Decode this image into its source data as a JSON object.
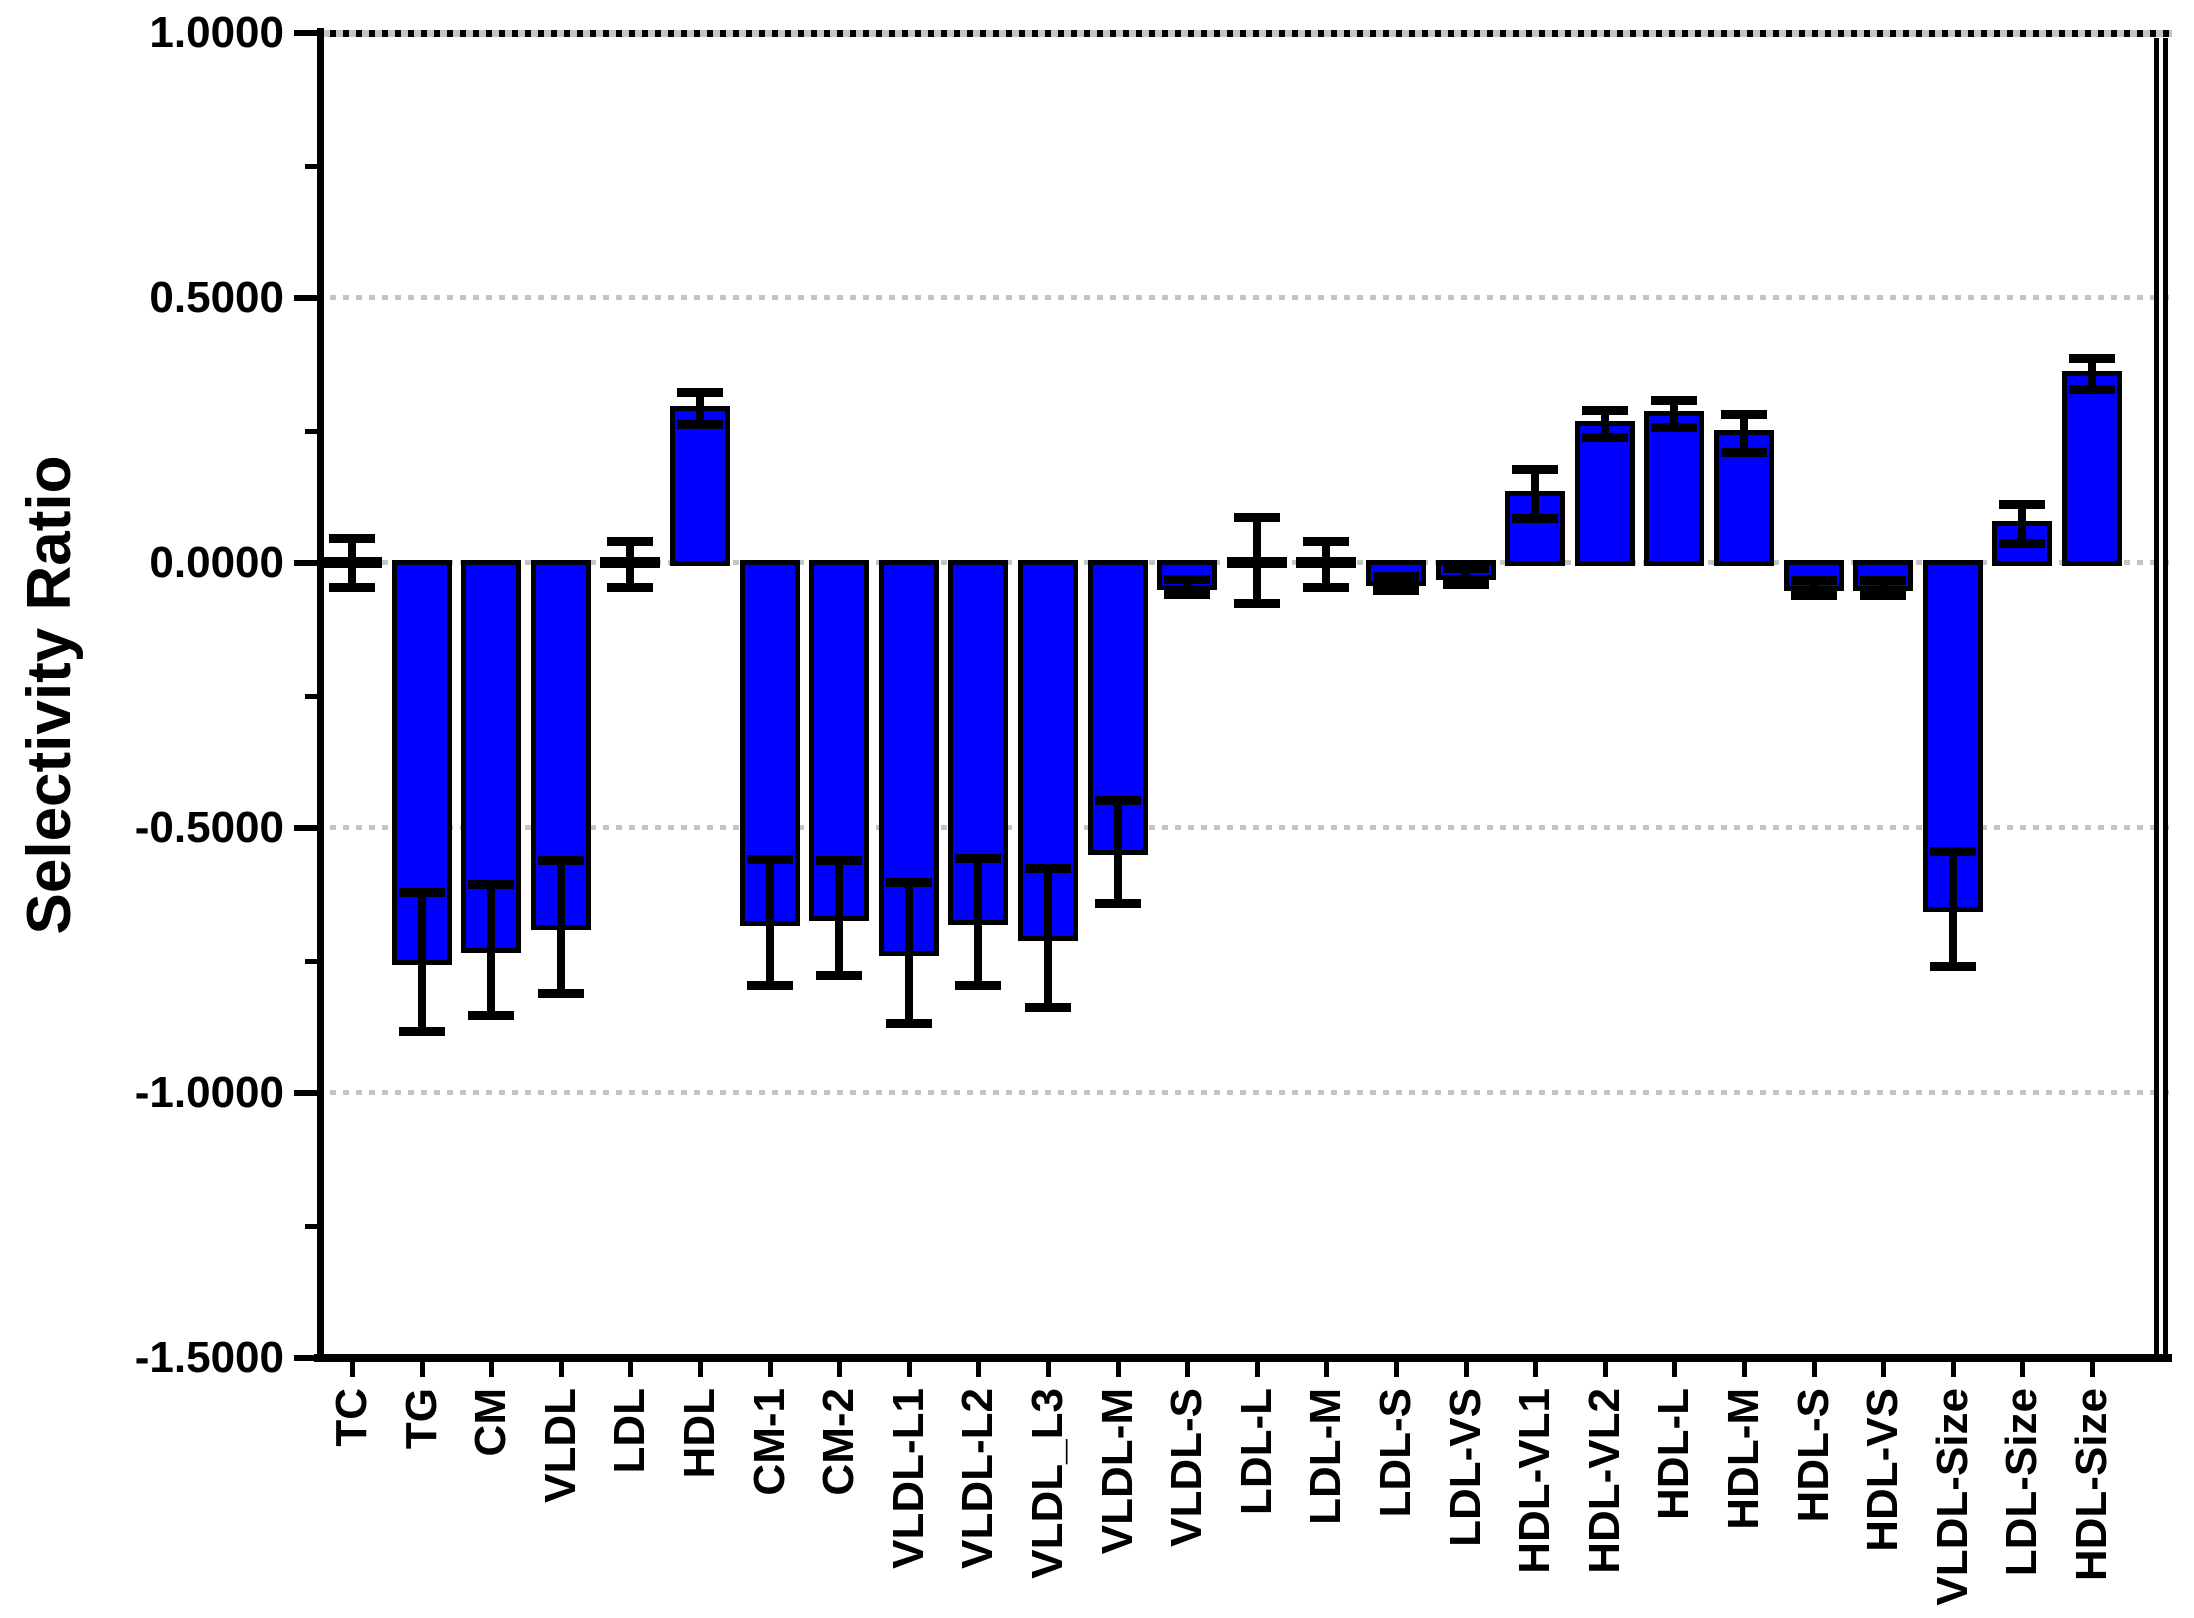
{
  "figure": {
    "background": "#ffffff"
  },
  "y_axis": {
    "title": "Selectivity Ratio",
    "range": [
      -1.5,
      1.0
    ],
    "major_ticks": [
      1.0,
      0.5,
      0.0,
      -0.5,
      -1.0,
      -1.5
    ],
    "tick_labels": [
      "1.0000",
      "0.5000",
      "0.0000",
      "-0.5000",
      "-1.0000",
      "-1.5000"
    ],
    "minor_ticks": [
      0.75,
      0.25,
      -0.25,
      -0.75,
      -1.25
    ],
    "gridline_values": [
      1.0,
      0.5,
      0.0,
      -0.5,
      -1.0
    ]
  },
  "chart_data": {
    "type": "bar",
    "title": "",
    "xlabel": "",
    "ylabel": "Selectivity Ratio",
    "ylim": [
      -1.5,
      1.0
    ],
    "grid": "horizontal dotted at 0.5 intervals",
    "legend_position": "none",
    "categories": [
      "TC",
      "TG",
      "CM",
      "VLDL",
      "LDL",
      "HDL",
      "CM-1",
      "CM-2",
      "VLDL-L1",
      "VLDL-L2",
      "VLDL_L3",
      "VLDL-M",
      "VLDL-S",
      "LDL-L",
      "LDL-M",
      "LDL-S",
      "LDL-VS",
      "HDL-VL1",
      "HDL-VL2",
      "HDL-L",
      "HDL-M",
      "HDL-S",
      "HDL-VS",
      "VLDL-Size",
      "LDL-Size",
      "HDL-Size"
    ],
    "values": [
      0.0,
      -0.753,
      -0.73,
      -0.687,
      -0.003,
      0.291,
      -0.679,
      -0.67,
      -0.736,
      -0.677,
      -0.707,
      -0.545,
      -0.045,
      0.005,
      -0.003,
      -0.038,
      -0.026,
      0.13,
      0.262,
      0.281,
      0.245,
      -0.047,
      -0.047,
      -0.653,
      0.074,
      0.357
    ],
    "error_bars": [
      0.047,
      0.132,
      0.125,
      0.127,
      0.045,
      0.031,
      0.12,
      0.11,
      0.134,
      0.121,
      0.132,
      0.098,
      0.015,
      0.082,
      0.045,
      0.014,
      0.016,
      0.047,
      0.026,
      0.027,
      0.037,
      0.015,
      0.015,
      0.11,
      0.038,
      0.03
    ],
    "colors": {
      "bar_fill": "#0000ff",
      "bar_edge": "#000000",
      "error_bar": "#000000",
      "grid": "#c4c4c4",
      "axis": "#000000",
      "background": "#ffffff"
    }
  }
}
